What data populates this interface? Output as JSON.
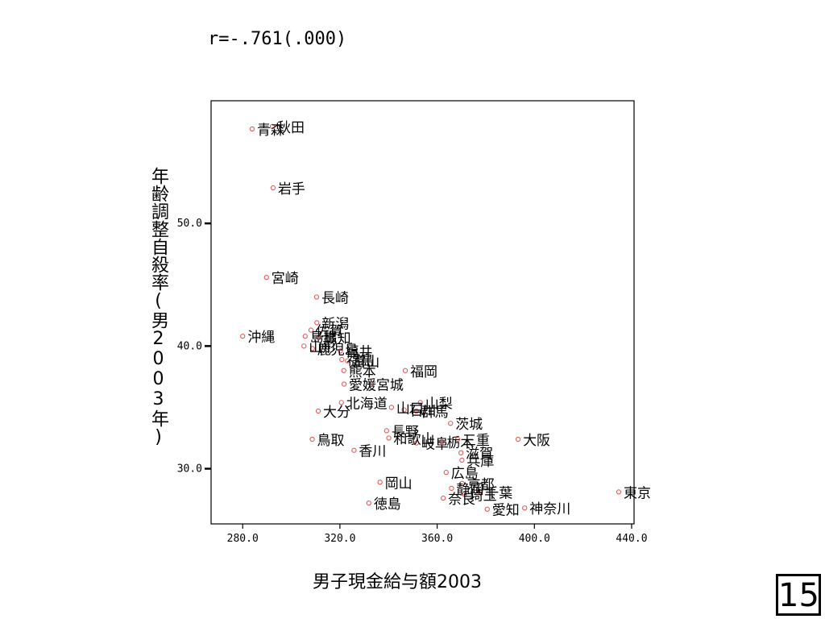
{
  "page_number": "15",
  "correlation_text": "r=-.761(.000)",
  "chart_data": {
    "type": "scatter",
    "title": "",
    "xlabel": "男子現金給与額2003",
    "ylabel": "年齢調整自殺率(男2003年)",
    "xlim": [
      267,
      441
    ],
    "ylim": [
      25.5,
      60.0
    ],
    "x_ticks": [
      {
        "value": 280,
        "label": "280.0"
      },
      {
        "value": 320,
        "label": "320.0"
      },
      {
        "value": 360,
        "label": "360.0"
      },
      {
        "value": 400,
        "label": "400.0"
      },
      {
        "value": 440,
        "label": "440.0"
      }
    ],
    "y_ticks": [
      {
        "value": 30,
        "label": "30.0"
      },
      {
        "value": 40,
        "label": "40.0"
      },
      {
        "value": 50,
        "label": "50.0"
      }
    ],
    "marker_color": "#e05a5a",
    "points": [
      {
        "x": 283.9,
        "y": 57.7,
        "label": "青森"
      },
      {
        "x": 292.2,
        "y": 57.9,
        "label": "秋田"
      },
      {
        "x": 292.5,
        "y": 52.9,
        "label": "岩手"
      },
      {
        "x": 289.8,
        "y": 45.6,
        "label": "宮崎"
      },
      {
        "x": 310.4,
        "y": 44.0,
        "label": "長崎"
      },
      {
        "x": 310.5,
        "y": 41.9,
        "label": "新潟"
      },
      {
        "x": 308.1,
        "y": 41.3,
        "label": "佐賀"
      },
      {
        "x": 311.3,
        "y": 40.7,
        "label": "高知"
      },
      {
        "x": 305.7,
        "y": 40.8,
        "label": "島根"
      },
      {
        "x": 280.0,
        "y": 40.8,
        "label": "沖縄"
      },
      {
        "x": 305.2,
        "y": 40.0,
        "label": "山形"
      },
      {
        "x": 308.7,
        "y": 39.8,
        "label": "鹿児島"
      },
      {
        "x": 320.2,
        "y": 39.6,
        "label": "福井"
      },
      {
        "x": 320.8,
        "y": 38.9,
        "label": "福島"
      },
      {
        "x": 323.1,
        "y": 38.8,
        "label": "富山"
      },
      {
        "x": 321.6,
        "y": 38.0,
        "label": "熊本"
      },
      {
        "x": 346.9,
        "y": 38.0,
        "label": "福岡"
      },
      {
        "x": 321.7,
        "y": 36.9,
        "label": "愛媛"
      },
      {
        "x": 332.9,
        "y": 36.9,
        "label": "宮城"
      },
      {
        "x": 320.6,
        "y": 35.4,
        "label": "北海道"
      },
      {
        "x": 353.1,
        "y": 35.4,
        "label": "山梨"
      },
      {
        "x": 341.2,
        "y": 35.0,
        "label": "山口"
      },
      {
        "x": 346.4,
        "y": 34.8,
        "label": "石川"
      },
      {
        "x": 351.4,
        "y": 34.7,
        "label": "群馬"
      },
      {
        "x": 311.1,
        "y": 34.7,
        "label": "大分"
      },
      {
        "x": 365.5,
        "y": 33.7,
        "label": "茨城"
      },
      {
        "x": 339.2,
        "y": 33.1,
        "label": "長野"
      },
      {
        "x": 368.4,
        "y": 32.4,
        "label": "三重"
      },
      {
        "x": 393.3,
        "y": 32.4,
        "label": "大阪"
      },
      {
        "x": 308.6,
        "y": 32.4,
        "label": "鳥取"
      },
      {
        "x": 340.1,
        "y": 32.5,
        "label": "和歌山"
      },
      {
        "x": 351.5,
        "y": 32.1,
        "label": "岐阜"
      },
      {
        "x": 361.9,
        "y": 32.2,
        "label": "栃木"
      },
      {
        "x": 325.8,
        "y": 31.5,
        "label": "香川"
      },
      {
        "x": 369.8,
        "y": 31.3,
        "label": "滋賀"
      },
      {
        "x": 370.2,
        "y": 30.7,
        "label": "兵庫"
      },
      {
        "x": 363.7,
        "y": 29.7,
        "label": "広島"
      },
      {
        "x": 370.3,
        "y": 28.8,
        "label": "京都"
      },
      {
        "x": 336.5,
        "y": 28.9,
        "label": "岡山"
      },
      {
        "x": 365.9,
        "y": 28.4,
        "label": "静岡"
      },
      {
        "x": 371.3,
        "y": 27.9,
        "label": "埼玉"
      },
      {
        "x": 377.8,
        "y": 28.1,
        "label": "千葉"
      },
      {
        "x": 362.5,
        "y": 27.6,
        "label": "奈良"
      },
      {
        "x": 331.9,
        "y": 27.2,
        "label": "徳島"
      },
      {
        "x": 380.6,
        "y": 26.7,
        "label": "愛知"
      },
      {
        "x": 396.0,
        "y": 26.8,
        "label": "神奈川"
      },
      {
        "x": 434.7,
        "y": 28.1,
        "label": "東京"
      }
    ]
  }
}
